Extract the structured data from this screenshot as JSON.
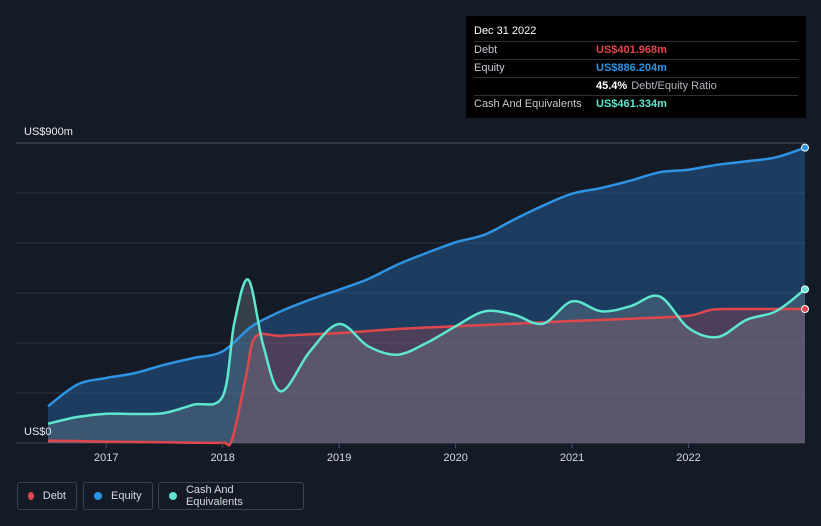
{
  "tooltip": {
    "date": "Dec 31 2022",
    "rows": [
      {
        "label": "Debt",
        "value": "US$401.968m",
        "color": "#e0474c"
      },
      {
        "label": "Equity",
        "value": "US$886.204m",
        "color": "#2e93e2"
      },
      {
        "label": "",
        "value": "45.4%",
        "suffix": "Debt/Equity Ratio",
        "color": "#ffffff"
      },
      {
        "label": "Cash And Equivalents",
        "value": "US$461.334m",
        "color": "#5ee6cf"
      }
    ]
  },
  "legend": [
    {
      "name": "Debt",
      "color": "#e0474c"
    },
    {
      "name": "Equity",
      "color": "#2e93e2"
    },
    {
      "name": "Cash And Equivalents",
      "color": "#5ee6cf"
    }
  ],
  "chart_data": {
    "type": "area",
    "title": "",
    "xlabel": "",
    "ylabel": "",
    "y_top_label": "US$900m",
    "y_bottom_label": "US$0",
    "ylim": [
      0,
      900
    ],
    "xlim": [
      2016.5,
      2023.0
    ],
    "x_ticks": [
      "2017",
      "2018",
      "2019",
      "2020",
      "2021",
      "2022"
    ],
    "series": [
      {
        "name": "Equity",
        "color": "#2e93e2",
        "points": [
          [
            2016.5,
            110
          ],
          [
            2016.75,
            175
          ],
          [
            2017.0,
            195
          ],
          [
            2017.25,
            210
          ],
          [
            2017.5,
            235
          ],
          [
            2017.75,
            255
          ],
          [
            2018.0,
            275
          ],
          [
            2018.25,
            350
          ],
          [
            2018.5,
            395
          ],
          [
            2018.75,
            430
          ],
          [
            2019.0,
            460
          ],
          [
            2019.25,
            492
          ],
          [
            2019.5,
            535
          ],
          [
            2019.75,
            570
          ],
          [
            2020.0,
            602
          ],
          [
            2020.25,
            625
          ],
          [
            2020.5,
            670
          ],
          [
            2020.75,
            712
          ],
          [
            2021.0,
            748
          ],
          [
            2021.25,
            765
          ],
          [
            2021.5,
            787
          ],
          [
            2021.75,
            812
          ],
          [
            2022.0,
            820
          ],
          [
            2022.25,
            835
          ],
          [
            2022.5,
            845
          ],
          [
            2022.75,
            857
          ],
          [
            2023.0,
            886
          ]
        ]
      },
      {
        "name": "Debt",
        "color": "#e0474c",
        "points": [
          [
            2016.5,
            7
          ],
          [
            2016.75,
            6
          ],
          [
            2017.0,
            4
          ],
          [
            2017.25,
            3
          ],
          [
            2017.5,
            2
          ],
          [
            2017.75,
            1
          ],
          [
            2018.0,
            1
          ],
          [
            2018.08,
            10
          ],
          [
            2018.2,
            200
          ],
          [
            2018.28,
            318
          ],
          [
            2018.5,
            322
          ],
          [
            2019.0,
            330
          ],
          [
            2019.5,
            342
          ],
          [
            2020.0,
            350
          ],
          [
            2020.5,
            358
          ],
          [
            2021.0,
            366
          ],
          [
            2021.5,
            373
          ],
          [
            2022.0,
            382
          ],
          [
            2022.2,
            400
          ],
          [
            2022.5,
            402
          ],
          [
            2023.0,
            402
          ]
        ]
      },
      {
        "name": "Cash And Equivalents",
        "color": "#5ee6cf",
        "points": [
          [
            2016.5,
            58
          ],
          [
            2016.75,
            78
          ],
          [
            2017.0,
            88
          ],
          [
            2017.25,
            87
          ],
          [
            2017.5,
            90
          ],
          [
            2017.75,
            115
          ],
          [
            2018.0,
            140
          ],
          [
            2018.1,
            360
          ],
          [
            2018.22,
            490
          ],
          [
            2018.35,
            290
          ],
          [
            2018.5,
            155
          ],
          [
            2018.75,
            275
          ],
          [
            2019.0,
            357
          ],
          [
            2019.25,
            290
          ],
          [
            2019.5,
            265
          ],
          [
            2019.75,
            300
          ],
          [
            2020.0,
            350
          ],
          [
            2020.25,
            395
          ],
          [
            2020.5,
            385
          ],
          [
            2020.75,
            358
          ],
          [
            2021.0,
            425
          ],
          [
            2021.25,
            395
          ],
          [
            2021.5,
            410
          ],
          [
            2021.75,
            440
          ],
          [
            2022.0,
            345
          ],
          [
            2022.25,
            318
          ],
          [
            2022.5,
            370
          ],
          [
            2022.75,
            395
          ],
          [
            2023.0,
            461
          ]
        ]
      }
    ]
  }
}
